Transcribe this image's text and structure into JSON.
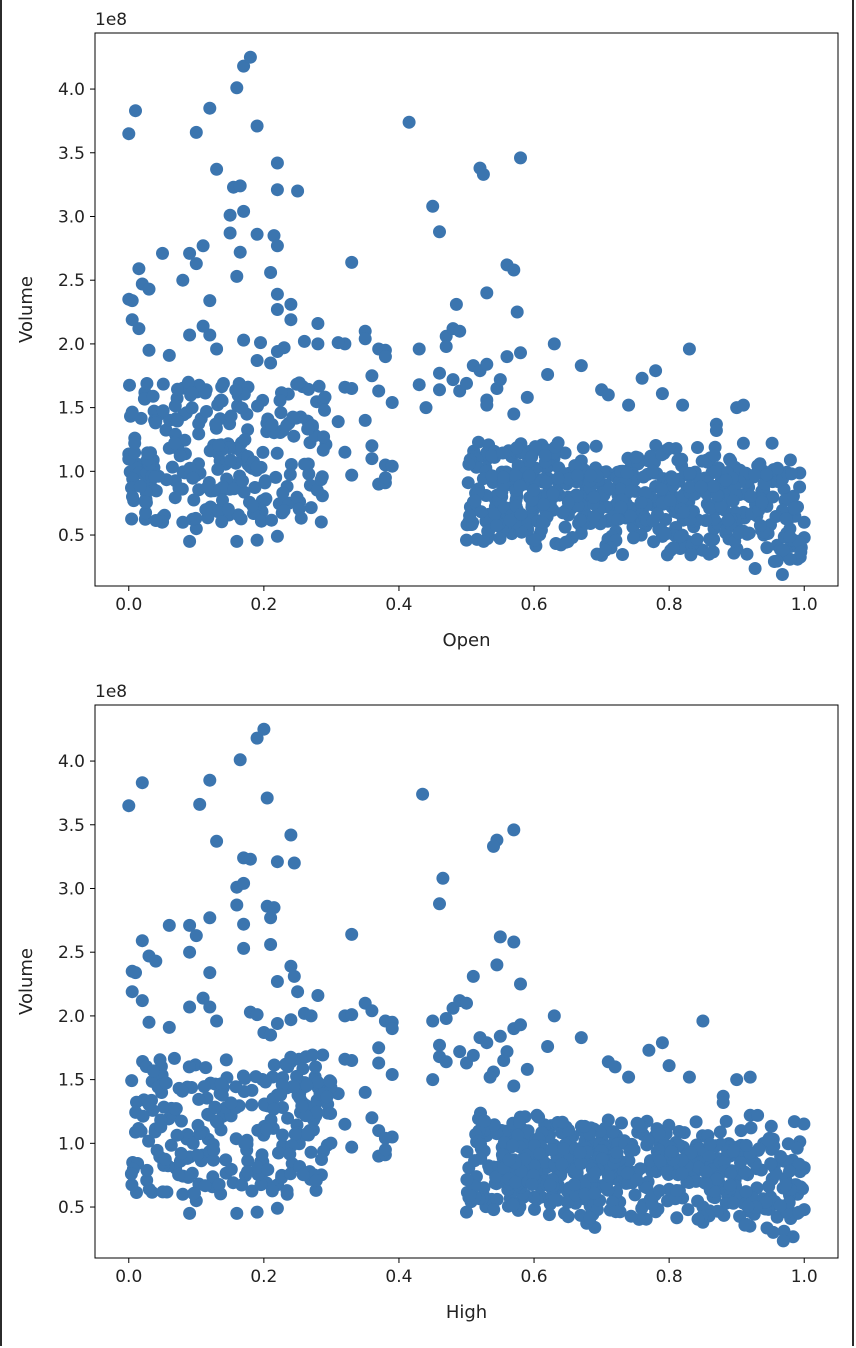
{
  "chart_data": [
    {
      "type": "scatter",
      "title": "",
      "xlabel": "Open",
      "ylabel": "Volume",
      "y_offset_label": "1e8",
      "xlim": [
        -0.05,
        1.05
      ],
      "ylim": [
        0.1,
        4.44
      ],
      "xticks": [
        0.0,
        0.2,
        0.4,
        0.6,
        0.8,
        1.0
      ],
      "xtick_labels": [
        "0.0",
        "0.2",
        "0.4",
        "0.6",
        "0.8",
        "1.0"
      ],
      "yticks": [
        0.5,
        1.0,
        1.5,
        2.0,
        2.5,
        3.0,
        3.5,
        4.0
      ],
      "ytick_labels": [
        "0.5",
        "1.0",
        "1.5",
        "2.0",
        "2.5",
        "3.0",
        "3.5",
        "4.0"
      ],
      "grid": false,
      "color": "#3b75af",
      "points": [
        [
          0.0,
          3.65
        ],
        [
          0.01,
          3.83
        ],
        [
          0.1,
          3.66
        ],
        [
          0.12,
          3.85
        ],
        [
          0.13,
          3.37
        ],
        [
          0.16,
          4.01
        ],
        [
          0.17,
          4.18
        ],
        [
          0.18,
          4.25
        ],
        [
          0.19,
          3.71
        ],
        [
          0.22,
          3.42
        ],
        [
          0.155,
          3.23
        ],
        [
          0.165,
          3.24
        ],
        [
          0.22,
          3.21
        ],
        [
          0.25,
          3.2
        ],
        [
          0.15,
          3.01
        ],
        [
          0.17,
          3.04
        ],
        [
          0.15,
          2.87
        ],
        [
          0.19,
          2.86
        ],
        [
          0.215,
          2.85
        ],
        [
          0.22,
          2.77
        ],
        [
          0.415,
          3.74
        ],
        [
          0.45,
          3.08
        ],
        [
          0.46,
          2.88
        ],
        [
          0.52,
          3.38
        ],
        [
          0.525,
          3.33
        ],
        [
          0.58,
          3.46
        ],
        [
          0.53,
          2.4
        ],
        [
          0.56,
          2.62
        ],
        [
          0.57,
          2.58
        ],
        [
          0.575,
          2.25
        ],
        [
          0.485,
          2.31
        ],
        [
          0.33,
          2.64
        ],
        [
          0.0,
          2.35
        ],
        [
          0.005,
          2.34
        ],
        [
          0.015,
          2.59
        ],
        [
          0.02,
          2.47
        ],
        [
          0.03,
          2.43
        ],
        [
          0.05,
          2.71
        ],
        [
          0.09,
          2.71
        ],
        [
          0.1,
          2.63
        ],
        [
          0.11,
          2.77
        ],
        [
          0.08,
          2.5
        ],
        [
          0.12,
          2.34
        ],
        [
          0.12,
          2.07
        ],
        [
          0.13,
          1.96
        ],
        [
          0.16,
          2.53
        ],
        [
          0.165,
          2.72
        ],
        [
          0.21,
          2.56
        ],
        [
          0.22,
          2.39
        ],
        [
          0.22,
          2.27
        ],
        [
          0.24,
          2.31
        ],
        [
          0.24,
          2.19
        ],
        [
          0.26,
          2.02
        ],
        [
          0.28,
          2.16
        ],
        [
          0.28,
          2.0
        ],
        [
          0.17,
          2.03
        ],
        [
          0.19,
          1.87
        ],
        [
          0.195,
          2.01
        ],
        [
          0.22,
          1.94
        ],
        [
          0.23,
          1.97
        ],
        [
          0.21,
          1.85
        ],
        [
          0.005,
          2.19
        ],
        [
          0.015,
          2.12
        ],
        [
          0.03,
          1.95
        ],
        [
          0.06,
          1.91
        ],
        [
          0.09,
          2.07
        ],
        [
          0.11,
          2.14
        ],
        [
          0.32,
          2.0
        ],
        [
          0.31,
          2.01
        ],
        [
          0.35,
          2.1
        ],
        [
          0.35,
          2.04
        ],
        [
          0.37,
          1.96
        ],
        [
          0.38,
          1.95
        ],
        [
          0.38,
          1.9
        ],
        [
          0.43,
          1.96
        ],
        [
          0.36,
          1.75
        ],
        [
          0.37,
          1.63
        ],
        [
          0.32,
          1.66
        ],
        [
          0.33,
          1.65
        ],
        [
          0.39,
          1.54
        ],
        [
          0.31,
          1.39
        ],
        [
          0.35,
          1.4
        ],
        [
          0.36,
          1.2
        ],
        [
          0.36,
          1.1
        ],
        [
          0.38,
          1.05
        ],
        [
          0.39,
          1.04
        ],
        [
          0.37,
          0.9
        ],
        [
          0.38,
          0.91
        ],
        [
          0.38,
          0.95
        ],
        [
          0.33,
          0.97
        ],
        [
          0.32,
          1.15
        ],
        [
          0.44,
          1.5
        ],
        [
          0.43,
          1.68
        ],
        [
          0.47,
          2.06
        ],
        [
          0.47,
          1.98
        ],
        [
          0.48,
          2.12
        ],
        [
          0.49,
          2.1
        ],
        [
          0.46,
          1.77
        ],
        [
          0.46,
          1.64
        ],
        [
          0.48,
          1.72
        ],
        [
          0.49,
          1.63
        ],
        [
          0.5,
          1.69
        ],
        [
          0.51,
          1.83
        ],
        [
          0.52,
          1.79
        ],
        [
          0.53,
          1.84
        ],
        [
          0.545,
          1.65
        ],
        [
          0.55,
          1.72
        ],
        [
          0.56,
          1.9
        ],
        [
          0.58,
          1.93
        ],
        [
          0.59,
          1.58
        ],
        [
          0.53,
          1.56
        ],
        [
          0.53,
          1.52
        ],
        [
          0.57,
          1.45
        ],
        [
          0.63,
          2.0
        ],
        [
          0.62,
          1.76
        ],
        [
          0.67,
          1.83
        ],
        [
          0.7,
          1.64
        ],
        [
          0.71,
          1.6
        ],
        [
          0.74,
          1.52
        ],
        [
          0.76,
          1.73
        ],
        [
          0.78,
          1.79
        ],
        [
          0.79,
          1.61
        ],
        [
          0.83,
          1.96
        ],
        [
          0.82,
          1.52
        ],
        [
          0.87,
          1.37
        ],
        [
          0.87,
          1.32
        ],
        [
          0.9,
          1.5
        ],
        [
          0.91,
          1.52
        ],
        [
          0.91,
          1.22
        ],
        [
          0.94,
          1.0
        ],
        [
          0.88,
          0.9
        ],
        [
          0.92,
          0.8
        ],
        [
          0.5,
          0.46
        ],
        [
          0.7,
          0.34
        ],
        [
          0.99,
          0.31
        ],
        [
          0.97,
          0.86
        ],
        [
          0.98,
          0.79
        ],
        [
          0.99,
          0.72
        ],
        [
          1.0,
          0.6
        ],
        [
          1.0,
          0.48
        ],
        [
          0.99,
          0.45
        ],
        [
          0.98,
          0.41
        ],
        [
          0.96,
          0.42
        ],
        [
          0.94,
          0.5
        ],
        [
          0.95,
          0.58
        ],
        [
          0.93,
          0.65
        ],
        [
          0.91,
          0.53
        ],
        [
          0.9,
          0.6
        ],
        [
          0.89,
          0.66
        ],
        [
          0.87,
          0.7
        ],
        [
          0.85,
          0.38
        ],
        [
          0.86,
          0.47
        ],
        [
          0.16,
          0.45
        ],
        [
          0.19,
          0.46
        ],
        [
          0.22,
          0.49
        ],
        [
          0.09,
          0.45
        ],
        [
          0.1,
          0.55
        ],
        [
          0.08,
          0.6
        ]
      ]
    },
    {
      "type": "scatter",
      "title": "",
      "xlabel": "High",
      "ylabel": "Volume",
      "y_offset_label": "1e8",
      "xlim": [
        -0.05,
        1.05
      ],
      "ylim": [
        0.1,
        4.44
      ],
      "xticks": [
        0.0,
        0.2,
        0.4,
        0.6,
        0.8,
        1.0
      ],
      "xtick_labels": [
        "0.0",
        "0.2",
        "0.4",
        "0.6",
        "0.8",
        "1.0"
      ],
      "yticks": [
        0.5,
        1.0,
        1.5,
        2.0,
        2.5,
        3.0,
        3.5,
        4.0
      ],
      "ytick_labels": [
        "0.5",
        "1.0",
        "1.5",
        "2.0",
        "2.5",
        "3.0",
        "3.5",
        "4.0"
      ],
      "grid": false,
      "color": "#3b75af",
      "points": [
        [
          0.0,
          3.65
        ],
        [
          0.02,
          3.83
        ],
        [
          0.105,
          3.66
        ],
        [
          0.12,
          3.85
        ],
        [
          0.13,
          3.37
        ],
        [
          0.165,
          4.01
        ],
        [
          0.19,
          4.18
        ],
        [
          0.2,
          4.25
        ],
        [
          0.205,
          3.71
        ],
        [
          0.24,
          3.42
        ],
        [
          0.17,
          3.24
        ],
        [
          0.18,
          3.23
        ],
        [
          0.22,
          3.21
        ],
        [
          0.245,
          3.2
        ],
        [
          0.16,
          3.01
        ],
        [
          0.17,
          3.04
        ],
        [
          0.16,
          2.87
        ],
        [
          0.205,
          2.86
        ],
        [
          0.215,
          2.85
        ],
        [
          0.21,
          2.77
        ],
        [
          0.435,
          3.74
        ],
        [
          0.465,
          3.08
        ],
        [
          0.46,
          2.88
        ],
        [
          0.545,
          3.38
        ],
        [
          0.54,
          3.33
        ],
        [
          0.57,
          3.46
        ],
        [
          0.545,
          2.4
        ],
        [
          0.55,
          2.62
        ],
        [
          0.57,
          2.58
        ],
        [
          0.58,
          2.25
        ],
        [
          0.51,
          2.31
        ],
        [
          0.33,
          2.64
        ],
        [
          0.005,
          2.35
        ],
        [
          0.01,
          2.34
        ],
        [
          0.02,
          2.59
        ],
        [
          0.03,
          2.47
        ],
        [
          0.04,
          2.43
        ],
        [
          0.06,
          2.71
        ],
        [
          0.09,
          2.71
        ],
        [
          0.1,
          2.63
        ],
        [
          0.12,
          2.77
        ],
        [
          0.09,
          2.5
        ],
        [
          0.12,
          2.34
        ],
        [
          0.12,
          2.07
        ],
        [
          0.13,
          1.96
        ],
        [
          0.17,
          2.53
        ],
        [
          0.17,
          2.72
        ],
        [
          0.21,
          2.56
        ],
        [
          0.24,
          2.39
        ],
        [
          0.22,
          2.27
        ],
        [
          0.245,
          2.31
        ],
        [
          0.25,
          2.19
        ],
        [
          0.26,
          2.02
        ],
        [
          0.28,
          2.16
        ],
        [
          0.27,
          2.0
        ],
        [
          0.18,
          2.03
        ],
        [
          0.2,
          1.87
        ],
        [
          0.19,
          2.01
        ],
        [
          0.22,
          1.94
        ],
        [
          0.24,
          1.97
        ],
        [
          0.21,
          1.85
        ],
        [
          0.005,
          2.19
        ],
        [
          0.02,
          2.12
        ],
        [
          0.03,
          1.95
        ],
        [
          0.06,
          1.91
        ],
        [
          0.09,
          2.07
        ],
        [
          0.11,
          2.14
        ],
        [
          0.32,
          2.0
        ],
        [
          0.33,
          2.01
        ],
        [
          0.35,
          2.1
        ],
        [
          0.36,
          2.04
        ],
        [
          0.38,
          1.96
        ],
        [
          0.39,
          1.95
        ],
        [
          0.39,
          1.9
        ],
        [
          0.45,
          1.96
        ],
        [
          0.37,
          1.75
        ],
        [
          0.37,
          1.63
        ],
        [
          0.32,
          1.66
        ],
        [
          0.33,
          1.65
        ],
        [
          0.39,
          1.54
        ],
        [
          0.31,
          1.39
        ],
        [
          0.35,
          1.4
        ],
        [
          0.36,
          1.2
        ],
        [
          0.37,
          1.1
        ],
        [
          0.39,
          1.05
        ],
        [
          0.38,
          1.04
        ],
        [
          0.37,
          0.9
        ],
        [
          0.38,
          0.91
        ],
        [
          0.38,
          0.95
        ],
        [
          0.33,
          0.97
        ],
        [
          0.32,
          1.15
        ],
        [
          0.45,
          1.5
        ],
        [
          0.46,
          1.68
        ],
        [
          0.48,
          2.06
        ],
        [
          0.47,
          1.98
        ],
        [
          0.49,
          2.12
        ],
        [
          0.5,
          2.1
        ],
        [
          0.46,
          1.77
        ],
        [
          0.47,
          1.64
        ],
        [
          0.49,
          1.72
        ],
        [
          0.5,
          1.63
        ],
        [
          0.51,
          1.69
        ],
        [
          0.52,
          1.83
        ],
        [
          0.53,
          1.79
        ],
        [
          0.55,
          1.84
        ],
        [
          0.555,
          1.65
        ],
        [
          0.56,
          1.72
        ],
        [
          0.57,
          1.9
        ],
        [
          0.58,
          1.93
        ],
        [
          0.59,
          1.58
        ],
        [
          0.54,
          1.56
        ],
        [
          0.535,
          1.52
        ],
        [
          0.57,
          1.45
        ],
        [
          0.63,
          2.0
        ],
        [
          0.62,
          1.76
        ],
        [
          0.67,
          1.83
        ],
        [
          0.71,
          1.64
        ],
        [
          0.72,
          1.6
        ],
        [
          0.74,
          1.52
        ],
        [
          0.77,
          1.73
        ],
        [
          0.79,
          1.79
        ],
        [
          0.8,
          1.61
        ],
        [
          0.85,
          1.96
        ],
        [
          0.83,
          1.52
        ],
        [
          0.88,
          1.37
        ],
        [
          0.88,
          1.32
        ],
        [
          0.9,
          1.5
        ],
        [
          0.92,
          1.52
        ],
        [
          0.92,
          1.22
        ],
        [
          0.94,
          1.0
        ],
        [
          0.89,
          0.9
        ],
        [
          0.93,
          0.8
        ],
        [
          0.5,
          0.46
        ],
        [
          0.69,
          0.34
        ],
        [
          0.97,
          0.31
        ],
        [
          0.97,
          0.86
        ],
        [
          0.98,
          0.79
        ],
        [
          1.0,
          0.81
        ],
        [
          0.99,
          0.6
        ],
        [
          1.0,
          0.48
        ],
        [
          0.99,
          0.45
        ],
        [
          0.98,
          0.41
        ],
        [
          0.96,
          0.42
        ],
        [
          0.95,
          0.5
        ],
        [
          0.95,
          0.58
        ],
        [
          0.93,
          0.65
        ],
        [
          0.91,
          0.53
        ],
        [
          0.9,
          0.6
        ],
        [
          0.89,
          0.66
        ],
        [
          0.87,
          0.7
        ],
        [
          0.85,
          0.38
        ],
        [
          0.86,
          0.47
        ],
        [
          0.16,
          0.45
        ],
        [
          0.19,
          0.46
        ],
        [
          0.22,
          0.49
        ],
        [
          0.09,
          0.45
        ],
        [
          0.1,
          0.55
        ],
        [
          0.08,
          0.6
        ]
      ]
    }
  ]
}
